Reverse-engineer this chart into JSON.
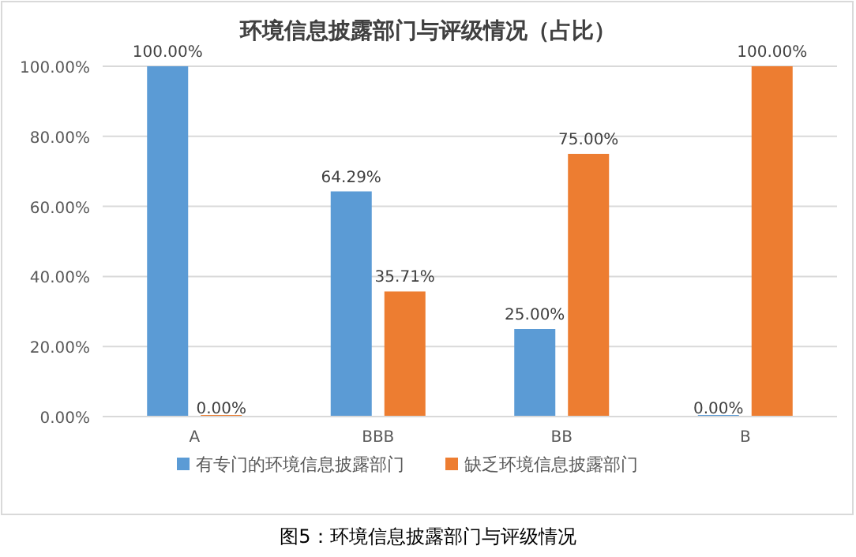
{
  "chart_data": {
    "type": "bar",
    "title": "环境信息披露部门与评级情况（占比）",
    "categories": [
      "A",
      "BBB",
      "BB",
      "B"
    ],
    "series": [
      {
        "name": "有专门的环境信息披露部门",
        "color": "#5b9bd5",
        "values": [
          100,
          64.29,
          25,
          0
        ],
        "value_labels": [
          "100.00%",
          "64.29%",
          "25.00%",
          "0.00%"
        ]
      },
      {
        "name": "缺乏环境信息披露部门",
        "color": "#ed7d31",
        "values": [
          0,
          35.71,
          75,
          100
        ],
        "value_labels": [
          "0.00%",
          "35.71%",
          "75.00%",
          "100.00%"
        ]
      }
    ],
    "ylim": [
      0,
      100
    ],
    "yticks": [
      {
        "value": 0,
        "label": "0.00%"
      },
      {
        "value": 20,
        "label": "20.00%"
      },
      {
        "value": 40,
        "label": "40.00%"
      },
      {
        "value": 60,
        "label": "60.00%"
      },
      {
        "value": 80,
        "label": "80.00%"
      },
      {
        "value": 100,
        "label": "100.00%"
      }
    ],
    "grid": "y",
    "legend": "bottom",
    "annotations": [
      "图5：环境信息披露部门与评级情况"
    ]
  }
}
